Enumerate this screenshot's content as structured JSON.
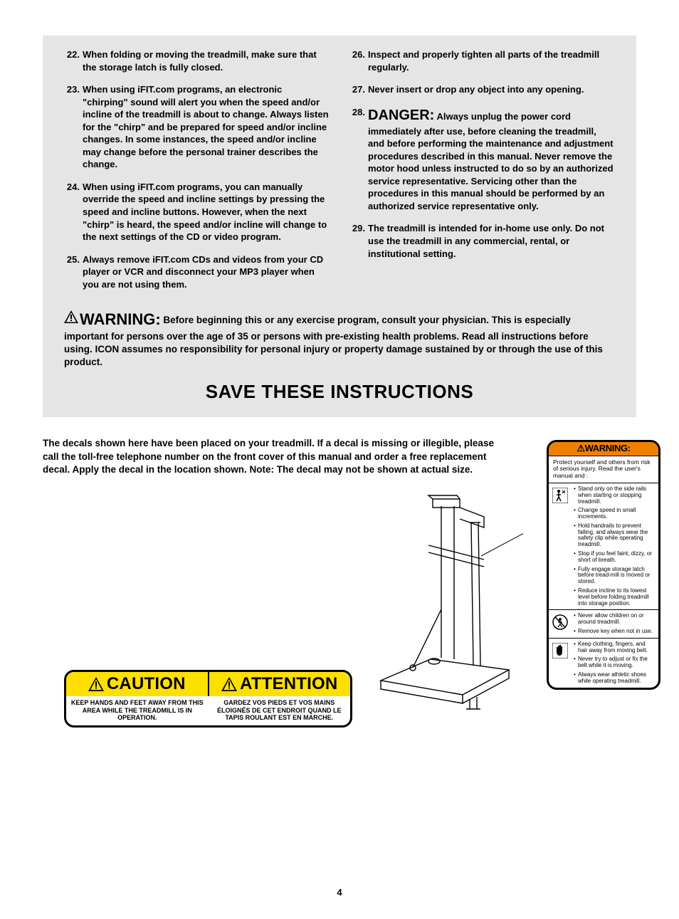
{
  "left_items": [
    {
      "num": "22.",
      "text": "When folding or moving the treadmill, make sure that the storage latch is fully closed."
    },
    {
      "num": "23.",
      "text": "When using iFIT.com programs, an electronic \"chirping\" sound will alert you when the speed and/or incline of the treadmill is about to change. Always listen for the \"chirp\" and be prepared for speed and/or incline changes. In some instances, the speed and/or incline may change before the personal trainer describes the change."
    },
    {
      "num": "24.",
      "text": "When using iFIT.com programs, you can manually override the speed and incline settings by pressing the speed and incline buttons. However, when the next \"chirp\" is heard, the speed and/or incline will change to the next settings of the CD or video program."
    },
    {
      "num": "25.",
      "text": "Always remove iFIT.com CDs and videos from your CD player or VCR and disconnect your MP3 player when you are not using them."
    }
  ],
  "right_items": [
    {
      "num": "26.",
      "text": "Inspect and properly tighten all parts of the treadmill regularly."
    },
    {
      "num": "27.",
      "text": "Never insert or drop any object into any opening."
    },
    {
      "num": "28.",
      "danger": "DANGER:",
      "text": "Always unplug the power cord immediately after use, before cleaning the treadmill, and before performing the maintenance and adjustment procedures described in this manual. Never remove the motor hood unless instructed to do so by an authorized service representative. Servicing other than the procedures in this manual should be performed by an authorized service representative only."
    },
    {
      "num": "29.",
      "text": "The treadmill is intended for in-home use only. Do not use the treadmill in any commercial, rental, or institutional setting."
    }
  ],
  "warn_inline": "WARNING:",
  "warn_para": "Before beginning this or any exercise program, consult your physician. This is especially important for persons over the age of 35 or persons with pre-existing health problems. Read all instructions before using. ICON assumes no responsibility for personal injury or property damage sustained by or through the use of this product.",
  "save_title": "SAVE THESE INSTRUCTIONS",
  "decal_intro": "The decals shown here have been placed on your treadmill. If a decal is missing or illegible, please call the toll-free telephone number on the front cover of this manual and order a free replacement decal. Apply the decal in the location shown. Note: The decal may not be shown at actual size.",
  "caution": {
    "left_title": "CAUTION",
    "right_title": "ATTENTION",
    "left_text": "KEEP HANDS AND FEET AWAY FROM THIS AREA WHILE THE TREADMILL IS IN OPERATION.",
    "right_text": "GARDEZ VOS PIEDS ET VOS MAINS ÉLOIGNÉS DE CET ENDROIT QUAND LE TAPIS ROULANT EST EN MARCHE."
  },
  "warn_decal": {
    "header": "⚠WARNING:",
    "sub": "Protect yourself and others from risk of serious injury. Read the user's manual and :",
    "sections": [
      {
        "icon": "person",
        "items": [
          "Stand only on the side rails when starting or stopping treadmill.",
          "Change speed in small increments.",
          "Hold handrails to prevent falling, and always wear the safety clip while operating treadmill.",
          "Stop if you feel faint, dizzy, or short of breath.",
          "Fully engage storage latch before tread-mill is moved or stored.",
          "Reduce incline to its lowest level before folding treadmill into storage position."
        ]
      },
      {
        "icon": "nochild",
        "items": [
          "Never allow children on or around treadmill.",
          "Remove key when not in use."
        ]
      },
      {
        "icon": "hand",
        "items": [
          "Keep clothing, fingers, and hair away from moving belt.",
          "Never try to adjust or fix the belt while it is moving.",
          "Always wear athletic shoes while operating treadmill."
        ]
      }
    ]
  },
  "page_number": "4",
  "colors": {
    "gray_bg": "#e5e5e5",
    "yellow": "#fee000",
    "orange": "#f08000"
  }
}
